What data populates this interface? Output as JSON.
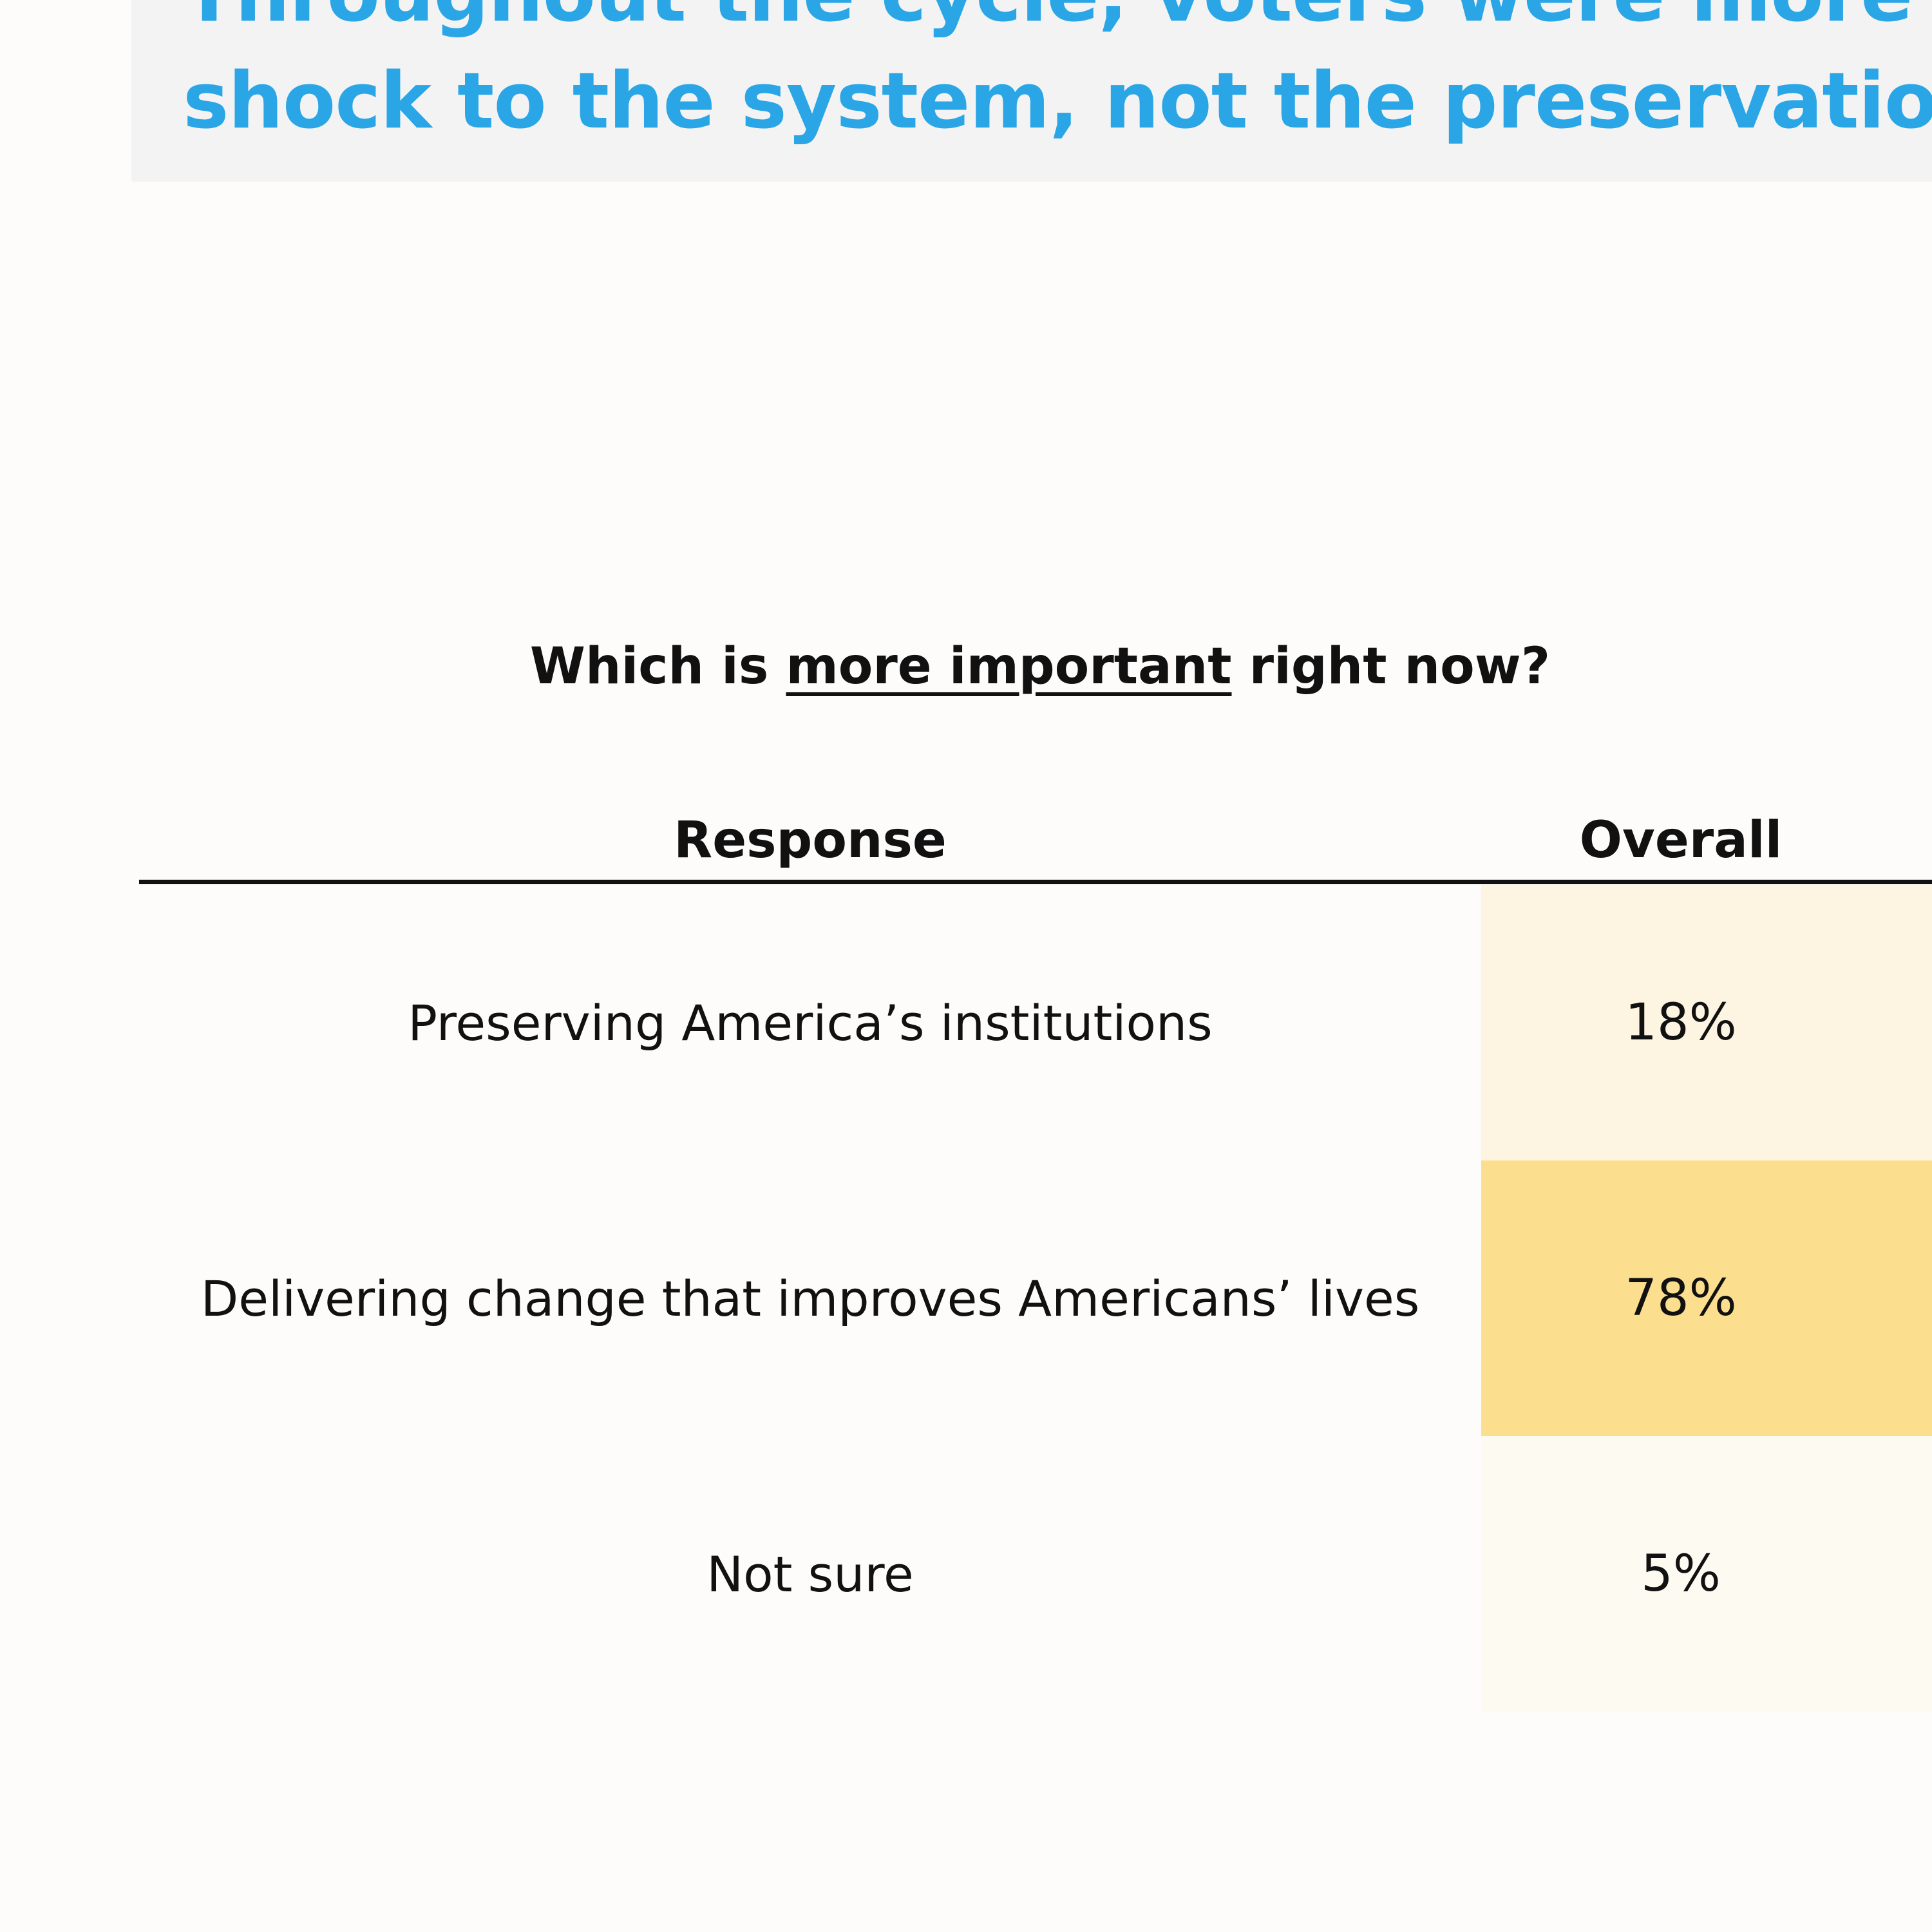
{
  "headline": {
    "line1": "Throughout the cycle, voters were more c",
    "line2": "shock to the system, not the preservation"
  },
  "question": {
    "before": "Which is ",
    "emphasis": "more important",
    "after": " right now?"
  },
  "colors": {
    "headline": "#2aa6e6",
    "header_band": "#f3f3f3",
    "heat_low": "#fdfaf2",
    "heat_mid": "#fdf4e1",
    "heat_high": "#fbdf8e"
  },
  "chart_data": {
    "type": "table",
    "columns": [
      "Response",
      "Overall"
    ],
    "rows": [
      {
        "response": "Preserving America’s institutions",
        "overall": "18%",
        "value": 18
      },
      {
        "response": "Delivering change that improves Americans’ lives",
        "overall": "78%",
        "value": 78
      },
      {
        "response": "Not sure",
        "overall": "5%",
        "value": 5
      }
    ]
  }
}
